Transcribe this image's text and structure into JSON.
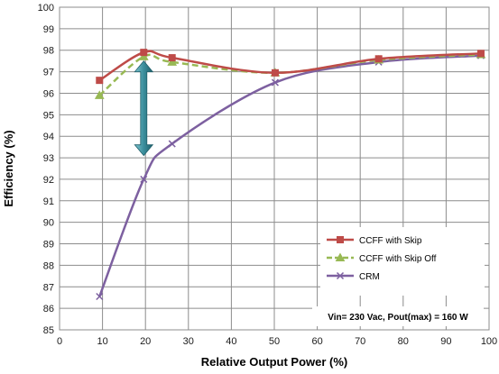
{
  "chart_data": {
    "type": "line",
    "xlabel": "Relative Output Power (%)",
    "ylabel": "Efficiency (%)",
    "xlim": [
      0,
      100
    ],
    "ylim": [
      85,
      100
    ],
    "x_ticks": [
      0,
      10,
      20,
      30,
      40,
      50,
      60,
      70,
      80,
      90,
      100
    ],
    "y_ticks": [
      85,
      86,
      87,
      88,
      89,
      90,
      91,
      92,
      93,
      94,
      95,
      96,
      97,
      98,
      99,
      100
    ],
    "grid": true,
    "legend_position": "bottom-right",
    "annotation": "Vin= 230 Vac, Pout(max) = 160 W",
    "series": [
      {
        "name": "CCFF with Skip",
        "color": "#be4b48",
        "marker": "square",
        "line": "solid",
        "x": [
          9.3,
          19.6,
          26.2,
          50.2,
          74.3,
          98.1
        ],
        "y": [
          96.6,
          97.9,
          97.65,
          96.95,
          97.6,
          97.85
        ]
      },
      {
        "name": "CCFF with Skip Off",
        "color": "#98b954",
        "marker": "triangle",
        "line": "dashed",
        "x": [
          9.3,
          19.6,
          26.2,
          50.2,
          74.3,
          98.1
        ],
        "y": [
          95.9,
          97.7,
          97.45,
          96.95,
          97.55,
          97.8
        ]
      },
      {
        "name": "CRM",
        "color": "#7d60a0",
        "marker": "x",
        "line": "solid",
        "x": [
          9.3,
          19.6,
          26.2,
          50.2,
          74.3,
          98.1
        ],
        "y": [
          86.55,
          92.0,
          93.65,
          96.5,
          97.45,
          97.75
        ]
      }
    ],
    "arrow": {
      "x": 19.6,
      "y_top": 97.5,
      "y_bottom": 93.1,
      "color": "#3a8e9c"
    }
  }
}
